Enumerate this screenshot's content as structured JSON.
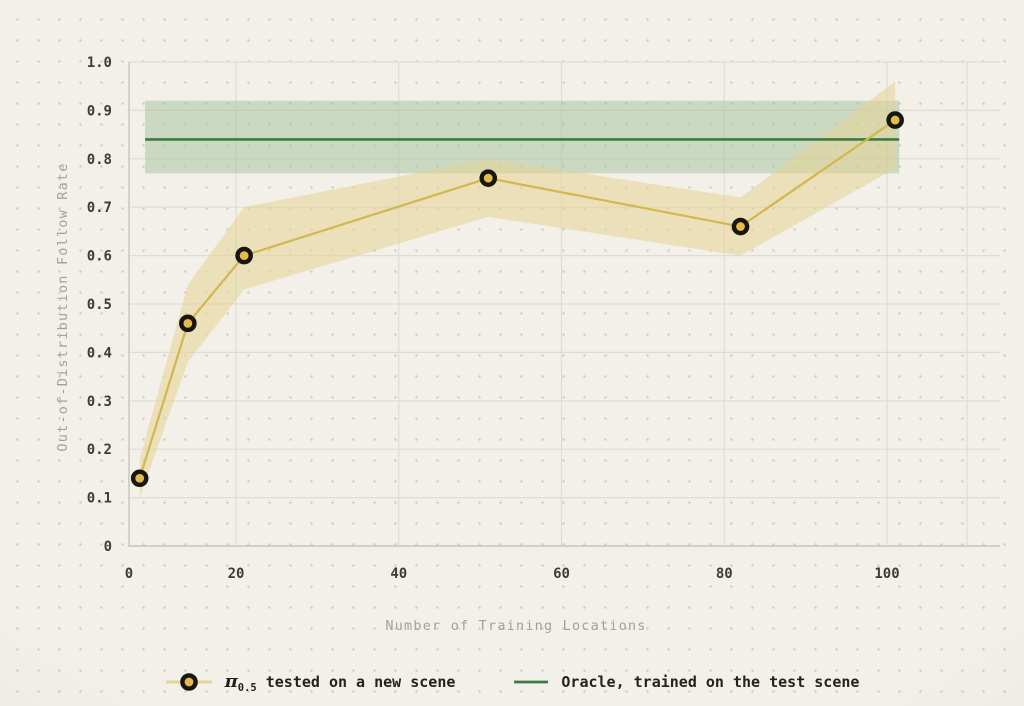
{
  "chart_data": {
    "type": "line",
    "title": "",
    "xlabel": "Number of Training Locations",
    "ylabel": "Out-of-Distribution Follow Rate",
    "x_tick_labels": [
      "0",
      "20",
      "40",
      "60",
      "80",
      "100"
    ],
    "x_tick_values": [
      0,
      20,
      40,
      60,
      80,
      100
    ],
    "y_tick_labels": [
      "0",
      "0.1",
      "0.2",
      "0.3",
      "0.4",
      "0.5",
      "0.6",
      "0.7",
      "0.8",
      "0.9",
      "1.0"
    ],
    "y_tick_values": [
      0,
      0.1,
      0.2,
      0.3,
      0.4,
      0.5,
      0.6,
      0.7,
      0.8,
      0.9,
      1.0
    ],
    "xlim": [
      0,
      110
    ],
    "ylim": [
      0,
      1.0
    ],
    "grid": true,
    "legend_position": "bottom-center",
    "series": [
      {
        "name": "π0.5 tested on a new scene",
        "style": "line-with-markers-and-band",
        "x": [
          2,
          11,
          21,
          51,
          82,
          101
        ],
        "y": [
          0.14,
          0.46,
          0.6,
          0.76,
          0.66,
          0.88
        ],
        "band_low": [
          0.1,
          0.38,
          0.53,
          0.68,
          0.6,
          0.78
        ],
        "band_high": [
          0.18,
          0.54,
          0.7,
          0.8,
          0.72,
          0.96
        ]
      },
      {
        "name": "Oracle, trained on the test scene",
        "style": "horizontal-line-with-band",
        "y": 0.84,
        "band_low": 0.77,
        "band_high": 0.92,
        "x_start": 3,
        "x_end": 101.5
      }
    ]
  },
  "legend": {
    "series1": {
      "symbol": "π",
      "subscript": "0.5",
      "label": "tested on a new scene"
    },
    "series2": {
      "label": "Oracle, trained on the test scene"
    }
  },
  "colors": {
    "background": "#f2f0e9",
    "grid_line": "#dedcd3",
    "axis_spine": "#c6c4bb",
    "tick_text": "#3d3d35",
    "axis_title_text": "#a3a197",
    "yellow_line": "#d2b84c",
    "yellow_band": "#e6d494",
    "marker_fill": "#e4ba4e",
    "marker_ring": "#17170f",
    "green_line": "#3e7b44",
    "green_band": "#a3c29d",
    "legend_text": "#23231b"
  }
}
